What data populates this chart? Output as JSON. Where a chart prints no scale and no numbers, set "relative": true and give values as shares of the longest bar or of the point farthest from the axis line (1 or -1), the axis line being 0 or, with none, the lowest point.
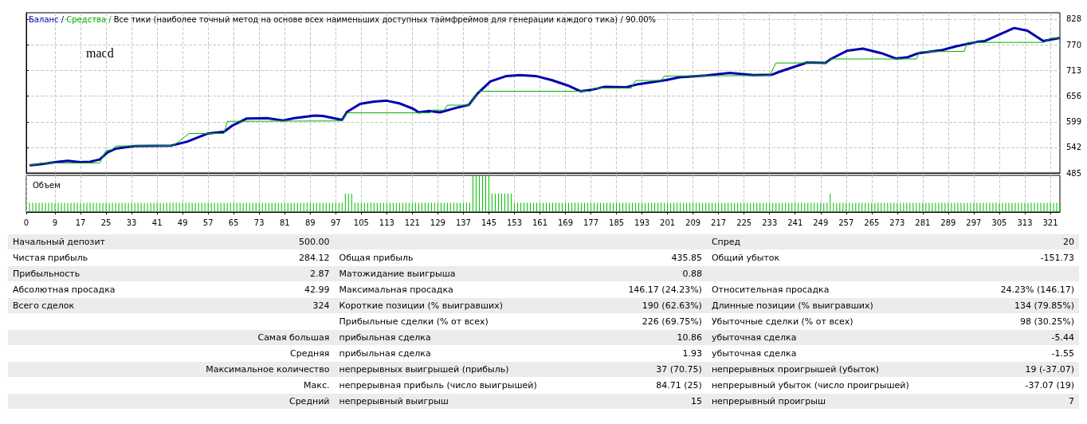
{
  "chart_data": [
    {
      "type": "line",
      "title": "Баланс / Средства / Все тики (наиболее точный метод на основе всех наименьших доступных таймфреймов для генерации каждого тика) / 90.00%",
      "marker": "none",
      "line_style": "solid",
      "grid": true,
      "tick_labels": "y",
      "annotations": [
        "macd"
      ],
      "xlim": [
        0,
        324
      ],
      "xticks": [
        0,
        9,
        17,
        25,
        33,
        41,
        49,
        57,
        65,
        73,
        81,
        89,
        97,
        105,
        113,
        121,
        129,
        137,
        145,
        153,
        161,
        169,
        177,
        185,
        193,
        201,
        209,
        217,
        225,
        233,
        241,
        249,
        257,
        265,
        273,
        281,
        289,
        297,
        305,
        313,
        321
      ],
      "ylim": [
        485,
        842
      ],
      "yticks": [
        485,
        542,
        599,
        656,
        713,
        770,
        828
      ],
      "series": [
        {
          "color": "#0000b0",
          "x": [
            1,
            5,
            10,
            13,
            17,
            20,
            23,
            25.5,
            28,
            34,
            45.5,
            50.5,
            57,
            62,
            64.7,
            69,
            75.5,
            80.5,
            84,
            90.5,
            93,
            99,
            100.5,
            104.7,
            109,
            113,
            117,
            121.3,
            123,
            126.3,
            129.7,
            134.7,
            138.8,
            141.3,
            145.5,
            150.5,
            154.7,
            159.7,
            164.7,
            169.7,
            173.8,
            177,
            181.3,
            188,
            191.3,
            200.5,
            204.7,
            213,
            220.5,
            228,
            233.8,
            236.3,
            244.7,
            250.5,
            252.2,
            257.2,
            262.2,
            268,
            272.6,
            276.3,
            279.7,
            287.2,
            291.3,
            298,
            300.5,
            309.7,
            313.8,
            318.8,
            324
          ],
          "values": [
            502,
            505,
            510,
            512,
            509,
            510,
            515,
            531,
            539,
            545,
            546,
            555,
            573,
            577,
            591,
            606,
            607,
            602,
            607,
            613,
            612,
            603,
            621,
            639,
            644,
            646,
            640,
            628,
            620,
            623,
            620,
            630,
            637,
            661,
            689,
            701,
            703,
            701,
            692,
            680,
            667,
            670,
            677,
            676,
            682,
            692,
            698,
            702,
            708,
            703,
            704,
            711,
            731,
            730,
            739,
            757,
            762,
            752,
            740,
            743,
            752,
            759,
            767,
            777,
            779,
            808,
            802,
            779,
            786
          ]
        },
        {
          "color": "#00b000",
          "x": [
            1,
            5,
            23,
            25,
            27,
            28,
            46,
            48,
            51,
            62,
            63,
            99,
            100.5,
            126.6,
            127.5,
            131,
            132,
            139,
            141.6,
            177,
            178,
            189.6,
            191,
            199,
            200,
            233,
            235,
            251,
            252,
            279,
            280,
            294,
            295,
            319,
            321,
            324
          ],
          "values": [
            502,
            507,
            507,
            535,
            537,
            545,
            546,
            556,
            573,
            573,
            600,
            601,
            619,
            619,
            625,
            625,
            636,
            636,
            667,
            667,
            674,
            674,
            691,
            691,
            701,
            702,
            730,
            730,
            739,
            739,
            755,
            756,
            776,
            776,
            785,
            786
          ]
        }
      ]
    },
    {
      "type": "bar",
      "title": "Объем",
      "relative": true,
      "grid": "x",
      "tick_labels": "x",
      "xlim": [
        0,
        324
      ],
      "xticks": [
        0,
        9,
        17,
        25,
        33,
        41,
        49,
        57,
        65,
        73,
        81,
        89,
        97,
        105,
        113,
        121,
        129,
        137,
        145,
        153,
        161,
        169,
        177,
        185,
        193,
        201,
        209,
        217,
        225,
        233,
        241,
        249,
        257,
        265,
        273,
        281,
        289,
        297,
        305,
        313,
        321
      ],
      "series": [
        {
          "color": "#00c000",
          "x": [
            1,
            2,
            3,
            4,
            5,
            6,
            7,
            8,
            9,
            10,
            11,
            12,
            13,
            14,
            15,
            16,
            17,
            18,
            19,
            20,
            21,
            22,
            23,
            24,
            25,
            26,
            27,
            28,
            29,
            30,
            31,
            32,
            33,
            34,
            35,
            36,
            37,
            38,
            39,
            40,
            41,
            42,
            43,
            44,
            45,
            46,
            47,
            48,
            49,
            50,
            51,
            52,
            53,
            54,
            55,
            56,
            57,
            58,
            59,
            60,
            61,
            62,
            63,
            64,
            65,
            66,
            67,
            68,
            69,
            70,
            71,
            72,
            73,
            74,
            75,
            76,
            77,
            78,
            79,
            80,
            81,
            82,
            83,
            84,
            85,
            86,
            87,
            88,
            89,
            90,
            91,
            92,
            93,
            94,
            95,
            96,
            97,
            98,
            99,
            100,
            101,
            102,
            103,
            104,
            105,
            106,
            107,
            108,
            109,
            110,
            111,
            112,
            113,
            114,
            115,
            116,
            117,
            118,
            119,
            120,
            121,
            122,
            123,
            124,
            125,
            126,
            127,
            128,
            129,
            130,
            131,
            132,
            133,
            134,
            135,
            136,
            137,
            138,
            139,
            140,
            141,
            142,
            143,
            144,
            145,
            146,
            147,
            148,
            149,
            150,
            151,
            152,
            153,
            154,
            155,
            156,
            157,
            158,
            159,
            160,
            161,
            162,
            163,
            164,
            165,
            166,
            167,
            168,
            169,
            170,
            171,
            172,
            173,
            174,
            175,
            176,
            177,
            178,
            179,
            180,
            181,
            182,
            183,
            184,
            185,
            186,
            187,
            188,
            189,
            190,
            191,
            192,
            193,
            194,
            195,
            196,
            197,
            198,
            199,
            200,
            201,
            202,
            203,
            204,
            205,
            206,
            207,
            208,
            209,
            210,
            211,
            212,
            213,
            214,
            215,
            216,
            217,
            218,
            219,
            220,
            221,
            222,
            223,
            224,
            225,
            226,
            227,
            228,
            229,
            230,
            231,
            232,
            233,
            234,
            235,
            236,
            237,
            238,
            239,
            240,
            241,
            242,
            243,
            244,
            245,
            246,
            247,
            248,
            249,
            250,
            251,
            252,
            253,
            254,
            255,
            256,
            257,
            258,
            259,
            260,
            261,
            262,
            263,
            264,
            265,
            266,
            267,
            268,
            269,
            270,
            271,
            272,
            273,
            274,
            275,
            276,
            277,
            278,
            279,
            280,
            281,
            282,
            283,
            284,
            285,
            286,
            287,
            288,
            289,
            290,
            291,
            292,
            293,
            294,
            295,
            296,
            297,
            298,
            299,
            300,
            301,
            302,
            303,
            304,
            305,
            306,
            307,
            308,
            309,
            310,
            311,
            312,
            313,
            314,
            315,
            316,
            317,
            318,
            319,
            320,
            321,
            322,
            323,
            324
          ],
          "values": [
            0.25,
            0.25,
            0.25,
            0.25,
            0.25,
            0.25,
            0.25,
            0.25,
            0.25,
            0.25,
            0.25,
            0.25,
            0.25,
            0.25,
            0.25,
            0.25,
            0.25,
            0.25,
            0.25,
            0.25,
            0.25,
            0.25,
            0.25,
            0.25,
            0.25,
            0.25,
            0.25,
            0.25,
            0.25,
            0.25,
            0.25,
            0.25,
            0.25,
            0.25,
            0.25,
            0.25,
            0.25,
            0.25,
            0.25,
            0.25,
            0.25,
            0.25,
            0.25,
            0.25,
            0.25,
            0.25,
            0.25,
            0.25,
            0.25,
            0.25,
            0.25,
            0.25,
            0.25,
            0.25,
            0.25,
            0.25,
            0.25,
            0.25,
            0.25,
            0.25,
            0.25,
            0.25,
            0.25,
            0.25,
            0.25,
            0.25,
            0.25,
            0.25,
            0.25,
            0.25,
            0.25,
            0.25,
            0.25,
            0.25,
            0.25,
            0.25,
            0.25,
            0.25,
            0.25,
            0.25,
            0.25,
            0.25,
            0.25,
            0.25,
            0.25,
            0.25,
            0.25,
            0.25,
            0.25,
            0.25,
            0.25,
            0.25,
            0.25,
            0.25,
            0.25,
            0.25,
            0.25,
            0.25,
            0.25,
            0.5,
            0.5,
            0.5,
            0.25,
            0.25,
            0.25,
            0.25,
            0.25,
            0.25,
            0.25,
            0.25,
            0.25,
            0.25,
            0.25,
            0.25,
            0.25,
            0.25,
            0.25,
            0.25,
            0.25,
            0.25,
            0.25,
            0.25,
            0.25,
            0.25,
            0.25,
            0.25,
            0.25,
            0.25,
            0.25,
            0.25,
            0.25,
            0.25,
            0.25,
            0.25,
            0.25,
            0.25,
            0.25,
            0.25,
            0.25,
            1,
            1,
            1,
            1,
            1,
            1,
            0.5,
            0.5,
            0.5,
            0.5,
            0.5,
            0.5,
            0.5,
            0.25,
            0.25,
            0.25,
            0.25,
            0.25,
            0.25,
            0.25,
            0.25,
            0.25,
            0.25,
            0.25,
            0.25,
            0.25,
            0.25,
            0.25,
            0.25,
            0.25,
            0.25,
            0.25,
            0.25,
            0.25,
            0.25,
            0.25,
            0.25,
            0.25,
            0.25,
            0.25,
            0.25,
            0.25,
            0.25,
            0.25,
            0.25,
            0.25,
            0.25,
            0.25,
            0.25,
            0.25,
            0.25,
            0.25,
            0.25,
            0.25,
            0.25,
            0.25,
            0.25,
            0.25,
            0.25,
            0.25,
            0.25,
            0.25,
            0.25,
            0.25,
            0.25,
            0.25,
            0.25,
            0.25,
            0.25,
            0.25,
            0.25,
            0.25,
            0.25,
            0.25,
            0.25,
            0.25,
            0.25,
            0.25,
            0.25,
            0.25,
            0.25,
            0.25,
            0.25,
            0.25,
            0.25,
            0.25,
            0.25,
            0.25,
            0.25,
            0.25,
            0.25,
            0.25,
            0.25,
            0.25,
            0.25,
            0.25,
            0.25,
            0.25,
            0.25,
            0.25,
            0.25,
            0.25,
            0.25,
            0.25,
            0.25,
            0.25,
            0.25,
            0.25,
            0.25,
            0.25,
            0.25,
            0.25,
            0.5,
            0.25,
            0.25,
            0.25,
            0.25,
            0.25,
            0.25,
            0.25,
            0.25,
            0.25,
            0.25,
            0.25,
            0.25,
            0.25,
            0.25,
            0.25,
            0.25,
            0.25,
            0.25,
            0.25,
            0.25,
            0.25,
            0.25,
            0.25,
            0.25,
            0.25,
            0.25,
            0.25,
            0.25,
            0.25,
            0.25,
            0.25,
            0.25,
            0.25,
            0.25,
            0.25,
            0.25,
            0.25,
            0.25,
            0.25,
            0.25,
            0.25,
            0.25,
            0.25,
            0.25,
            0.25,
            0.25,
            0.25,
            0.25,
            0.25,
            0.25,
            0.25,
            0.25,
            0.25,
            0.25,
            0.25,
            0.25,
            0.25,
            0.25,
            0.25,
            0.25,
            0.25,
            0.25,
            0.25,
            0.25,
            0.25,
            0.25,
            0.25,
            0.25,
            0.25,
            0.25,
            0.25,
            0.25
          ]
        }
      ]
    },
    {
      "type": "other",
      "annotations": [
        "Начальный депозит",
        "500.00",
        "Спред",
        "20",
        "Чистая прибыль",
        "284.12",
        "Общая прибыль",
        "435.85",
        "Общий убыток",
        "-151.73",
        "Прибыльность",
        "2.87",
        "Матожидание выигрыша",
        "0.88",
        "Абсолютная просадка",
        "42.99",
        "Максимальная просадка",
        "146.17 (24.23%)",
        "Относительная просадка",
        "24.23% (146.17)",
        "Всего сделок",
        "324",
        "Короткие позиции (% выигравших)",
        "190 (62.63%)",
        "Длинные позиции (% выигравших)",
        "134 (79.85%)",
        "Прибыльные сделки (% от всех)",
        "226 (69.75%)",
        "Убыточные сделки (% от всех)",
        "98 (30.25%)",
        "Самая большая",
        "прибыльная сделка",
        "10.86",
        "убыточная сделка",
        "-5.44",
        "Средняя",
        "прибыльная сделка",
        "1.93",
        "убыточная сделка",
        "-1.55",
        "Максимальное количество",
        "непрерывных выигрышей (прибыль)",
        "37 (70.75)",
        "непрерывных проигрышей (убыток)",
        "19 (-37.07)",
        "Макс.",
        "непрерывная прибыль (число выигрышей)",
        "84.71 (25)",
        "непрерывный убыток (число проигрышей)",
        "-37.07 (19)",
        "Средний",
        "непрерывный выигрыш",
        "15",
        "непрерывный проигрыш",
        "7"
      ]
    }
  ]
}
